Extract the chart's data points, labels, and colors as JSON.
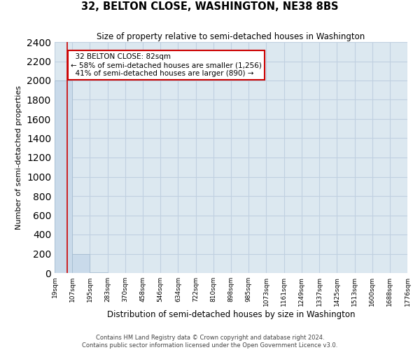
{
  "title": "32, BELTON CLOSE, WASHINGTON, NE38 8BS",
  "subtitle": "Size of property relative to semi-detached houses in Washington",
  "xlabel": "Distribution of semi-detached houses by size in Washington",
  "ylabel": "Number of semi-detached properties",
  "footnote1": "Contains HM Land Registry data © Crown copyright and database right 2024.",
  "footnote2": "Contains public sector information licensed under the Open Government Licence v3.0.",
  "property_size": 82,
  "property_label": "32 BELTON CLOSE: 82sqm",
  "pct_smaller": 58,
  "pct_larger": 41,
  "n_smaller": 1256,
  "n_larger": 890,
  "bin_edges": [
    19,
    107,
    195,
    283,
    370,
    458,
    546,
    634,
    722,
    810,
    898,
    985,
    1073,
    1161,
    1249,
    1337,
    1425,
    1513,
    1600,
    1688,
    1776
  ],
  "bin_counts": [
    2000,
    200,
    5,
    3,
    2,
    2,
    2,
    1,
    1,
    1,
    1,
    1,
    1,
    1,
    1,
    1,
    1,
    1,
    1,
    1
  ],
  "bar_color": "#c9daea",
  "bar_edge_color": "#a0b8cc",
  "grid_color": "#c0d0e0",
  "background_color": "#dce8f0",
  "annotation_box_color": "#ffffff",
  "annotation_border_color": "#cc0000",
  "property_line_color": "#cc0000",
  "ylim": [
    0,
    2400
  ],
  "yticks": [
    0,
    200,
    400,
    600,
    800,
    1000,
    1200,
    1400,
    1600,
    1800,
    2000,
    2200,
    2400
  ]
}
